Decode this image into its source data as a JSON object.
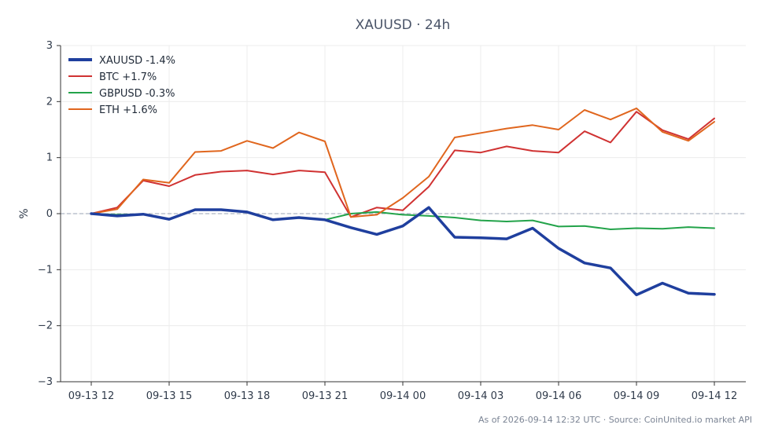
{
  "chart_data": {
    "type": "line",
    "title": "XAUUSD · 24h",
    "xlabel": "",
    "ylabel": "%",
    "ylim": [
      -3,
      3
    ],
    "yticks": [
      3,
      2,
      1,
      0,
      -1,
      -2,
      -3
    ],
    "ytick_labels": [
      "3",
      "2",
      "1",
      "0",
      "−1",
      "−2",
      "−3"
    ],
    "xticks": [
      "09-13 12",
      "09-13 15",
      "09-13 18",
      "09-13 21",
      "09-14 00",
      "09-14 03",
      "09-14 06",
      "09-14 09",
      "09-14 12"
    ],
    "x_start_hour": 12,
    "x_step_hours": 1,
    "grid": true,
    "zero_line": true,
    "legend_position": "top-left",
    "series": [
      {
        "name": "XAUUSD -1.4%",
        "color": "#1f3f9e",
        "emphasis": true,
        "values": [
          0.0,
          -0.04,
          -0.01,
          -0.1,
          0.07,
          0.07,
          0.03,
          -0.11,
          -0.07,
          -0.11,
          -0.25,
          -0.37,
          -0.22,
          0.11,
          -0.42,
          -0.43,
          -0.45,
          -0.26,
          -0.62,
          -0.88,
          -0.97,
          -1.45,
          -1.24,
          -1.42,
          -1.44
        ]
      },
      {
        "name": "BTC +1.7%",
        "color": "#d03232",
        "values": [
          0.0,
          0.11,
          0.59,
          0.49,
          0.69,
          0.75,
          0.77,
          0.7,
          0.77,
          0.74,
          -0.06,
          0.11,
          0.06,
          0.48,
          1.13,
          1.09,
          1.2,
          1.12,
          1.09,
          1.47,
          1.27,
          1.82,
          1.49,
          1.33,
          1.7
        ]
      },
      {
        "name": "GBPUSD -0.3%",
        "color": "#23a34a",
        "values": [
          0.0,
          -0.02,
          -0.01,
          -0.1,
          0.07,
          0.07,
          0.03,
          -0.11,
          -0.07,
          -0.11,
          0.0,
          0.03,
          -0.02,
          -0.04,
          -0.07,
          -0.12,
          -0.14,
          -0.12,
          -0.23,
          -0.22,
          -0.28,
          -0.26,
          -0.27,
          -0.24,
          -0.26
        ]
      },
      {
        "name": "ETH +1.6%",
        "color": "#e0661e",
        "values": [
          0.0,
          0.08,
          0.61,
          0.55,
          1.1,
          1.12,
          1.3,
          1.17,
          1.45,
          1.29,
          -0.06,
          -0.02,
          0.28,
          0.66,
          1.36,
          1.44,
          1.52,
          1.58,
          1.5,
          1.85,
          1.68,
          1.88,
          1.46,
          1.3,
          1.64
        ]
      }
    ]
  },
  "footer": "As of 2026-09-14 12:32 UTC · Source: CoinUnited.io market API"
}
